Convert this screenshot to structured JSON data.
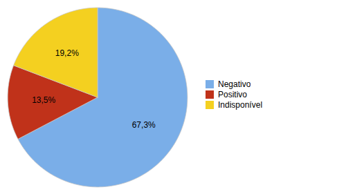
{
  "chart_data": {
    "type": "pie",
    "categories": [
      "Negativo",
      "Positivo",
      "Indisponível"
    ],
    "values": [
      67.3,
      13.5,
      19.2
    ],
    "value_labels": [
      "67,3%",
      "13,5%",
      "19,2%"
    ],
    "colors": [
      "#7aaee8",
      "#c0321a",
      "#f4d020"
    ],
    "data_labels": true,
    "legend": "right"
  }
}
